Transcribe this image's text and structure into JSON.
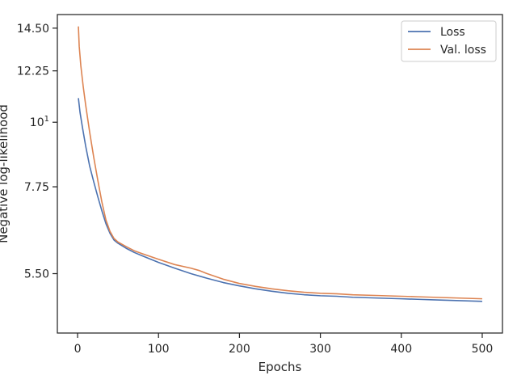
{
  "chart_data": {
    "type": "line",
    "xlabel": "Epochs",
    "ylabel": "Negative log-likelihood",
    "yscale": "log",
    "xlim": [
      -25,
      525
    ],
    "ylim": [
      4.35,
      15.3
    ],
    "grid": false,
    "legend": {
      "placement": "top-right",
      "entries": [
        "Loss",
        "Val. loss"
      ]
    },
    "x_ticks": [
      {
        "value": 0,
        "label": "0"
      },
      {
        "value": 100,
        "label": "100"
      },
      {
        "value": 200,
        "label": "200"
      },
      {
        "value": 300,
        "label": "300"
      },
      {
        "value": 400,
        "label": "400"
      },
      {
        "value": 500,
        "label": "500"
      }
    ],
    "y_ticks": [
      {
        "value": 5.5,
        "label": "5.50"
      },
      {
        "value": 7.75,
        "label": "7.75"
      },
      {
        "value": 10,
        "label": "10",
        "sup": "1"
      },
      {
        "value": 12.25,
        "label": "12.25"
      },
      {
        "value": 14.5,
        "label": "14.50"
      }
    ],
    "series": [
      {
        "name": "Loss",
        "color": "#4c72b0",
        "x": [
          1,
          3,
          6,
          10,
          15,
          20,
          25,
          30,
          35,
          40,
          45,
          50,
          60,
          70,
          80,
          100,
          120,
          140,
          160,
          180,
          200,
          220,
          240,
          260,
          280,
          300,
          320,
          340,
          360,
          380,
          400,
          420,
          440,
          460,
          480,
          500
        ],
        "y": [
          11.0,
          10.4,
          9.8,
          9.1,
          8.4,
          7.9,
          7.45,
          7.05,
          6.7,
          6.45,
          6.28,
          6.2,
          6.08,
          5.98,
          5.9,
          5.75,
          5.62,
          5.5,
          5.4,
          5.31,
          5.24,
          5.18,
          5.13,
          5.09,
          5.06,
          5.04,
          5.03,
          5.01,
          5.0,
          4.99,
          4.98,
          4.97,
          4.96,
          4.95,
          4.94,
          4.93
        ]
      },
      {
        "name": "Val. loss",
        "color": "#dd8452",
        "x": [
          1,
          2,
          4,
          7,
          10,
          15,
          20,
          25,
          30,
          35,
          40,
          45,
          50,
          60,
          70,
          80,
          100,
          120,
          140,
          150,
          160,
          180,
          200,
          220,
          240,
          260,
          280,
          290,
          300,
          320,
          340,
          360,
          380,
          400,
          420,
          440,
          460,
          480,
          500
        ],
        "y": [
          14.6,
          13.5,
          12.5,
          11.5,
          10.7,
          9.6,
          8.7,
          7.95,
          7.3,
          6.8,
          6.5,
          6.32,
          6.23,
          6.12,
          6.02,
          5.95,
          5.82,
          5.7,
          5.62,
          5.57,
          5.5,
          5.38,
          5.29,
          5.23,
          5.18,
          5.14,
          5.11,
          5.1,
          5.09,
          5.08,
          5.06,
          5.05,
          5.04,
          5.03,
          5.02,
          5.01,
          5.0,
          4.99,
          4.98
        ]
      }
    ]
  }
}
